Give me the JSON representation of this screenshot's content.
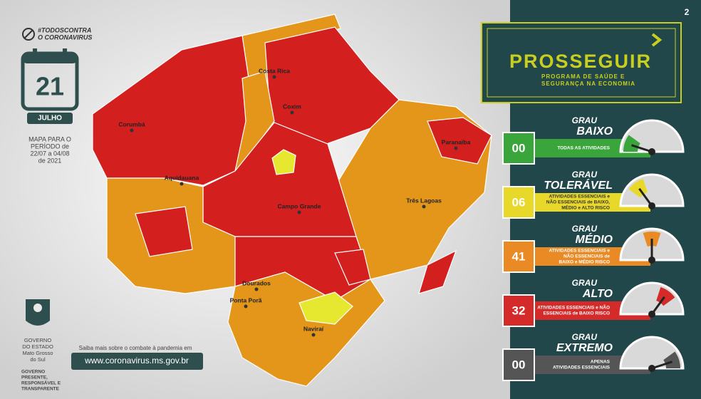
{
  "page_number": "2",
  "campaign": {
    "hashtag_line1": "#TODOSCONTRA",
    "hashtag_line2": "O CORONAVIRUS"
  },
  "date": {
    "day": "21",
    "month": "JULHO"
  },
  "period": [
    "MAPA PARA O",
    "PERÍODO de",
    "22/07 a 04/08",
    "de 2021"
  ],
  "government": {
    "lines": [
      "GOVERNO",
      "DO ESTADO",
      "Mato Grosso",
      "do Sul"
    ],
    "motto": [
      "GOVERNO",
      "PRESENTE,",
      "RESPONSÁVEL E",
      "TRANSPARENTE"
    ]
  },
  "more_info": {
    "text": "Saiba mais sobre o combate à pandemia em",
    "url": "www.coronavirus.ms.gov.br"
  },
  "program": {
    "name": "PROSSEGUIR",
    "subtitle": [
      "PROGRAMA DE SAÚDE E",
      "SEGURANÇA NA ECONOMIA"
    ]
  },
  "map": {
    "cities": [
      "Aquidauana",
      "Campo Grande",
      "Três Lagoas",
      "Dourados",
      "Ponta Porã",
      "Naviraí",
      "Corumbá",
      "Paranaíba",
      "Costa Rica",
      "Coxim"
    ]
  },
  "levels": [
    {
      "grau": "GRAU",
      "name": "BAIXO",
      "count": "00",
      "description": [
        "TODAS AS ATIVIDADES"
      ]
    },
    {
      "grau": "GRAU",
      "name": "TOLERÁVEL",
      "count": "06",
      "description": [
        "ATIVIDADES ESSENCIAIS e",
        "NÃO ESSENCIAIS de BAIXO,",
        "MÉDIO e ALTO RISCO"
      ]
    },
    {
      "grau": "GRAU",
      "name": "MÉDIO",
      "count": "41",
      "description": [
        "ATIVIDADES ESSENCIAIS e",
        "NÃO ESSENCIAIS de",
        "BAIXO e MÉDIO RISCO"
      ]
    },
    {
      "grau": "GRAU",
      "name": "ALTO",
      "count": "32",
      "description": [
        "ATIVIDADES ESSENCIAIS e NÃO",
        "ESSENCIAIS de BAIXO RISCO"
      ]
    },
    {
      "grau": "GRAU",
      "name": "EXTREMO",
      "count": "00",
      "description": [
        "APENAS",
        "ATIVIDADES ESSENCIAIS"
      ]
    }
  ]
}
